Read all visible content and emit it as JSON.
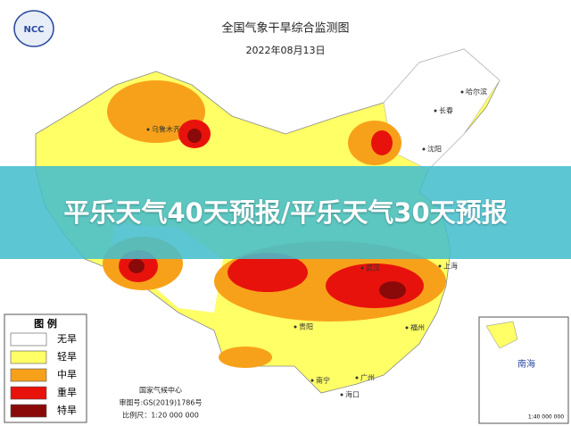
{
  "header": {
    "title": "全国气象干旱综合监测图",
    "date": "2022年08月13日",
    "logo": "NCC"
  },
  "banner": {
    "text": "平乐天气40天预报/平乐天气30天预报"
  },
  "legend": {
    "title": "图 例",
    "items": [
      {
        "label": "无旱",
        "color": "#ffffff"
      },
      {
        "label": "轻旱",
        "color": "#ffff66"
      },
      {
        "label": "中旱",
        "color": "#f7a11a"
      },
      {
        "label": "重旱",
        "color": "#e8120c"
      },
      {
        "label": "特旱",
        "color": "#8a0a0a"
      }
    ]
  },
  "footer": {
    "agency": "国家气候中心",
    "approval": "审图号:GS(2019)1786号",
    "scale": "比例尺：1:20 000 000"
  },
  "inset": {
    "label": "南海",
    "scale": "1:40 000 000"
  },
  "cities": [
    "哈尔滨",
    "长春",
    "沈阳",
    "乌鲁木齐",
    "武汉",
    "上海",
    "贵阳",
    "广州",
    "海口",
    "南宁",
    "福州"
  ]
}
